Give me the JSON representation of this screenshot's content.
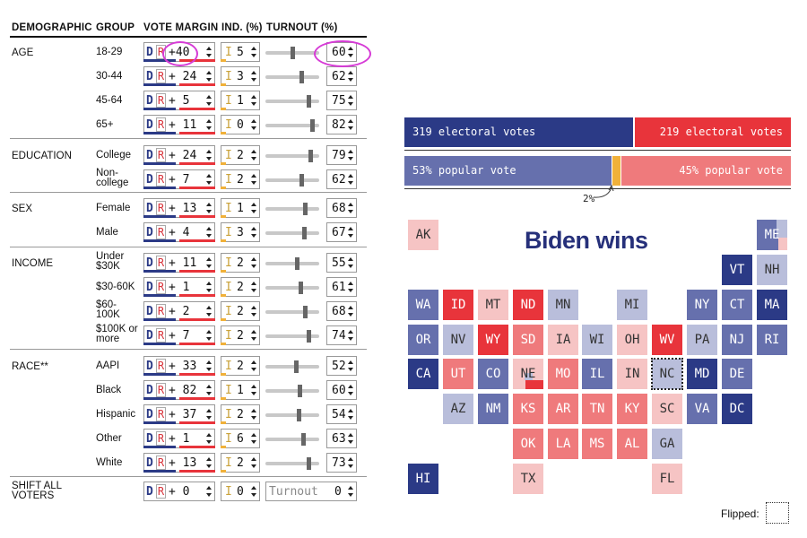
{
  "headers": {
    "demographic": "DEMOGRAPHIC",
    "group": "GROUP",
    "vote_margin": "VOTE MARGIN",
    "ind": "IND. (%)",
    "turnout": "TURNOUT (%)"
  },
  "controls": {
    "dem_letter": "D",
    "rep_letter": "R",
    "ind_letter": "I",
    "turnout_placeholder": "Turnout"
  },
  "rows": [
    {
      "demo": "AGE",
      "group": "18-29",
      "margin": "+40",
      "ind": "5",
      "turnout": "60"
    },
    {
      "demo": "",
      "group": "30-44",
      "margin": "+ 24",
      "ind": "3",
      "turnout": "62"
    },
    {
      "demo": "",
      "group": "45-64",
      "margin": "+ 5",
      "ind": "1",
      "turnout": "75"
    },
    {
      "demo": "",
      "group": "65+",
      "margin": "+ 11",
      "ind": "0",
      "turnout": "82"
    },
    {
      "demo": "EDUCATION",
      "group": "College",
      "margin": "+ 24",
      "ind": "2",
      "turnout": "79"
    },
    {
      "demo": "",
      "group": "Non-college",
      "margin": "+ 7",
      "ind": "2",
      "turnout": "62"
    },
    {
      "demo": "SEX",
      "group": "Female",
      "margin": "+ 13",
      "ind": "1",
      "turnout": "68"
    },
    {
      "demo": "",
      "group": "Male",
      "margin": "+ 4",
      "ind": "3",
      "turnout": "67"
    },
    {
      "demo": "INCOME",
      "group": "Under $30K",
      "margin": "+ 11",
      "ind": "2",
      "turnout": "55"
    },
    {
      "demo": "",
      "group": "$30-60K",
      "margin": "+ 1",
      "ind": "2",
      "turnout": "61"
    },
    {
      "demo": "",
      "group": "$60-100K",
      "margin": "+ 2",
      "ind": "2",
      "turnout": "68"
    },
    {
      "demo": "",
      "group": "$100K or more",
      "margin": "+ 7",
      "ind": "2",
      "turnout": "74"
    },
    {
      "demo": "RACE**",
      "group": "AAPI",
      "margin": "+ 33",
      "ind": "2",
      "turnout": "52"
    },
    {
      "demo": "",
      "group": "Black",
      "margin": "+ 82",
      "ind": "1",
      "turnout": "60"
    },
    {
      "demo": "",
      "group": "Hispanic",
      "margin": "+ 37",
      "ind": "2",
      "turnout": "54"
    },
    {
      "demo": "",
      "group": "Other",
      "margin": "+ 1",
      "ind": "6",
      "turnout": "63"
    },
    {
      "demo": "",
      "group": "White",
      "margin": "+ 13",
      "ind": "2",
      "turnout": "73"
    }
  ],
  "shift_all": {
    "label": "SHIFT ALL VOTERS",
    "margin": "+ 0",
    "ind": "0",
    "turnout": "0"
  },
  "results": {
    "dem_ev": "319 electoral votes",
    "rep_ev": "219 electoral votes",
    "dem_ev_value": 319,
    "rep_ev_value": 219,
    "dem_pv": "53% popular vote",
    "rep_pv": "45% popular vote",
    "dem_pv_value": 53,
    "ind_pv_value": 2,
    "rep_pv_value": 45,
    "ind_pv": "2%"
  },
  "headline": "Biden wins",
  "legend": {
    "flipped": "Flipped:"
  },
  "colors": {
    "d_strong": "#2b3a86",
    "d_med": "#6670ad",
    "d_light": "#b9bedb",
    "r_strong": "#e8343b",
    "r_med": "#ef7a7c",
    "r_light": "#f6c4c4",
    "ind": "#f0b13a"
  },
  "states": [
    {
      "abbr": "AK",
      "shade": "r_light"
    },
    {
      "abbr": "ME",
      "shade": "d_med"
    },
    {
      "abbr": "VT",
      "shade": "d_strong"
    },
    {
      "abbr": "NH",
      "shade": "d_light"
    },
    {
      "abbr": "WA",
      "shade": "d_med"
    },
    {
      "abbr": "ID",
      "shade": "r_strong"
    },
    {
      "abbr": "MT",
      "shade": "r_light"
    },
    {
      "abbr": "ND",
      "shade": "r_strong"
    },
    {
      "abbr": "MN",
      "shade": "d_light"
    },
    {
      "abbr": "MI",
      "shade": "d_light"
    },
    {
      "abbr": "NY",
      "shade": "d_med"
    },
    {
      "abbr": "CT",
      "shade": "d_med"
    },
    {
      "abbr": "MA",
      "shade": "d_strong"
    },
    {
      "abbr": "OR",
      "shade": "d_med"
    },
    {
      "abbr": "NV",
      "shade": "d_light"
    },
    {
      "abbr": "WY",
      "shade": "r_strong"
    },
    {
      "abbr": "SD",
      "shade": "r_med"
    },
    {
      "abbr": "IA",
      "shade": "r_light"
    },
    {
      "abbr": "WI",
      "shade": "d_light"
    },
    {
      "abbr": "OH",
      "shade": "r_light"
    },
    {
      "abbr": "WV",
      "shade": "r_strong"
    },
    {
      "abbr": "PA",
      "shade": "d_light"
    },
    {
      "abbr": "NJ",
      "shade": "d_med"
    },
    {
      "abbr": "RI",
      "shade": "d_med"
    },
    {
      "abbr": "CA",
      "shade": "d_strong"
    },
    {
      "abbr": "UT",
      "shade": "r_med"
    },
    {
      "abbr": "CO",
      "shade": "d_med"
    },
    {
      "abbr": "NE",
      "shade": "r_light"
    },
    {
      "abbr": "MO",
      "shade": "r_med"
    },
    {
      "abbr": "IL",
      "shade": "d_med"
    },
    {
      "abbr": "IN",
      "shade": "r_light"
    },
    {
      "abbr": "NC",
      "shade": "d_light"
    },
    {
      "abbr": "MD",
      "shade": "d_strong"
    },
    {
      "abbr": "DE",
      "shade": "d_med"
    },
    {
      "abbr": "AZ",
      "shade": "d_light"
    },
    {
      "abbr": "NM",
      "shade": "d_med"
    },
    {
      "abbr": "KS",
      "shade": "r_med"
    },
    {
      "abbr": "AR",
      "shade": "r_med"
    },
    {
      "abbr": "TN",
      "shade": "r_med"
    },
    {
      "abbr": "KY",
      "shade": "r_med"
    },
    {
      "abbr": "SC",
      "shade": "r_light"
    },
    {
      "abbr": "VA",
      "shade": "d_med"
    },
    {
      "abbr": "DC",
      "shade": "d_strong"
    },
    {
      "abbr": "OK",
      "shade": "r_med"
    },
    {
      "abbr": "LA",
      "shade": "r_med"
    },
    {
      "abbr": "MS",
      "shade": "r_med"
    },
    {
      "abbr": "AL",
      "shade": "r_med"
    },
    {
      "abbr": "GA",
      "shade": "d_light"
    },
    {
      "abbr": "HI",
      "shade": "d_strong"
    },
    {
      "abbr": "TX",
      "shade": "r_light"
    },
    {
      "abbr": "FL",
      "shade": "r_light"
    }
  ]
}
